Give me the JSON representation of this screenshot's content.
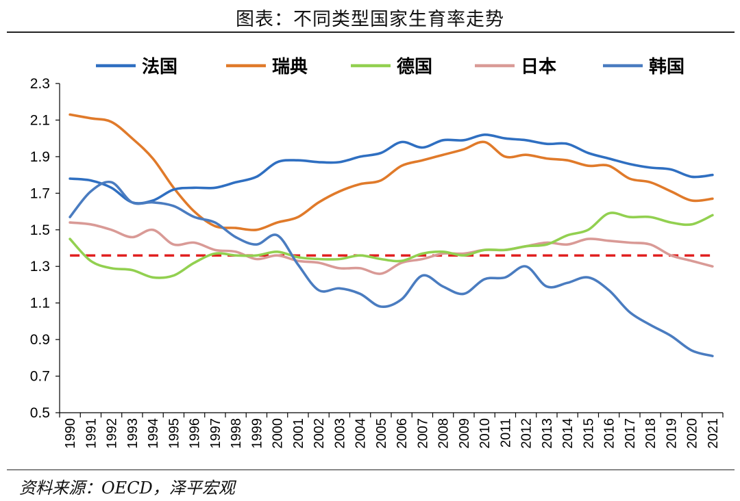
{
  "title": "图表：不同类型国家生育率走势",
  "source": "资料来源：OECD，泽平宏观",
  "chart_data": {
    "type": "line",
    "ylim": [
      0.5,
      2.3
    ],
    "yticks": [
      "0.5",
      "0.7",
      "0.9",
      "1.1",
      "1.3",
      "1.5",
      "1.7",
      "1.9",
      "2.1",
      "2.3"
    ],
    "x": [
      "1990",
      "1991",
      "1992",
      "1993",
      "1994",
      "1995",
      "1996",
      "1997",
      "1998",
      "1999",
      "2000",
      "2001",
      "2002",
      "2003",
      "2004",
      "2005",
      "2006",
      "2007",
      "2008",
      "2009",
      "2010",
      "2011",
      "2012",
      "2013",
      "2014",
      "2015",
      "2016",
      "2017",
      "2018",
      "2019",
      "2020",
      "2021"
    ],
    "reference_line": {
      "value": 1.36,
      "color": "#e02020",
      "style": "dashed"
    },
    "legend_position": "top",
    "series": [
      {
        "name": "法国",
        "color": "#2f6fc1",
        "values": [
          1.78,
          1.77,
          1.73,
          1.65,
          1.66,
          1.72,
          1.73,
          1.73,
          1.76,
          1.79,
          1.87,
          1.88,
          1.87,
          1.87,
          1.9,
          1.92,
          1.98,
          1.95,
          1.99,
          1.99,
          2.02,
          2.0,
          1.99,
          1.97,
          1.97,
          1.92,
          1.89,
          1.86,
          1.84,
          1.83,
          1.79,
          1.8
        ]
      },
      {
        "name": "瑞典",
        "color": "#e07a2a",
        "values": [
          2.13,
          2.11,
          2.09,
          2.0,
          1.89,
          1.73,
          1.6,
          1.52,
          1.51,
          1.5,
          1.54,
          1.57,
          1.65,
          1.71,
          1.75,
          1.77,
          1.85,
          1.88,
          1.91,
          1.94,
          1.98,
          1.9,
          1.91,
          1.89,
          1.88,
          1.85,
          1.85,
          1.78,
          1.76,
          1.71,
          1.66,
          1.67
        ]
      },
      {
        "name": "德国",
        "color": "#92d050",
        "values": [
          1.45,
          1.33,
          1.29,
          1.28,
          1.24,
          1.25,
          1.32,
          1.37,
          1.36,
          1.36,
          1.38,
          1.35,
          1.34,
          1.34,
          1.36,
          1.34,
          1.33,
          1.37,
          1.38,
          1.36,
          1.39,
          1.39,
          1.41,
          1.42,
          1.47,
          1.5,
          1.59,
          1.57,
          1.57,
          1.54,
          1.53,
          1.58
        ]
      },
      {
        "name": "日本",
        "color": "#d99a96",
        "values": [
          1.54,
          1.53,
          1.5,
          1.46,
          1.5,
          1.42,
          1.43,
          1.39,
          1.38,
          1.34,
          1.36,
          1.33,
          1.32,
          1.29,
          1.29,
          1.26,
          1.32,
          1.34,
          1.37,
          1.37,
          1.39,
          1.39,
          1.41,
          1.43,
          1.42,
          1.45,
          1.44,
          1.43,
          1.42,
          1.36,
          1.33,
          1.3
        ]
      },
      {
        "name": "韩国",
        "color": "#4a7cc0",
        "values": [
          1.57,
          1.71,
          1.76,
          1.65,
          1.65,
          1.63,
          1.57,
          1.54,
          1.46,
          1.42,
          1.47,
          1.31,
          1.17,
          1.18,
          1.15,
          1.08,
          1.12,
          1.25,
          1.19,
          1.15,
          1.23,
          1.24,
          1.3,
          1.19,
          1.21,
          1.24,
          1.17,
          1.05,
          0.98,
          0.92,
          0.84,
          0.81
        ]
      }
    ]
  }
}
